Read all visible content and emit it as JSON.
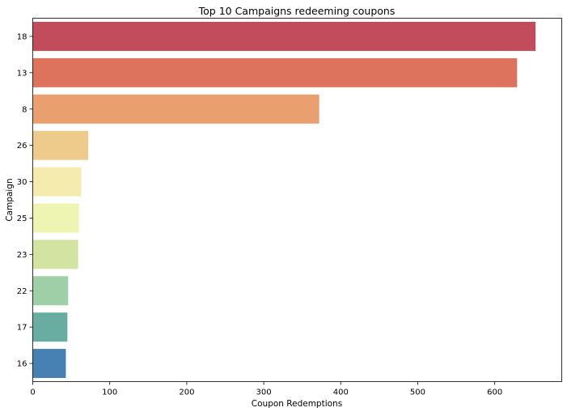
{
  "chart_data": {
    "type": "bar",
    "orientation": "horizontal",
    "title": "Top 10 Campaigns redeeming coupons",
    "xlabel": "Coupon Redemptions",
    "ylabel": "Campaign",
    "categories": [
      "18",
      "13",
      "8",
      "26",
      "30",
      "25",
      "23",
      "22",
      "17",
      "16"
    ],
    "values": [
      653,
      629,
      372,
      72,
      63,
      60,
      59,
      46,
      45,
      43
    ],
    "colors": [
      "#c24b5c",
      "#dd735d",
      "#e9a06e",
      "#eecb8a",
      "#f5ebae",
      "#eef4b1",
      "#d3e3a2",
      "#9ecfa7",
      "#69ada2",
      "#4780b3"
    ],
    "xlim": [
      0,
      687
    ],
    "xticks": [
      0,
      100,
      200,
      300,
      400,
      500,
      600
    ],
    "grid": false,
    "legend": "none"
  }
}
